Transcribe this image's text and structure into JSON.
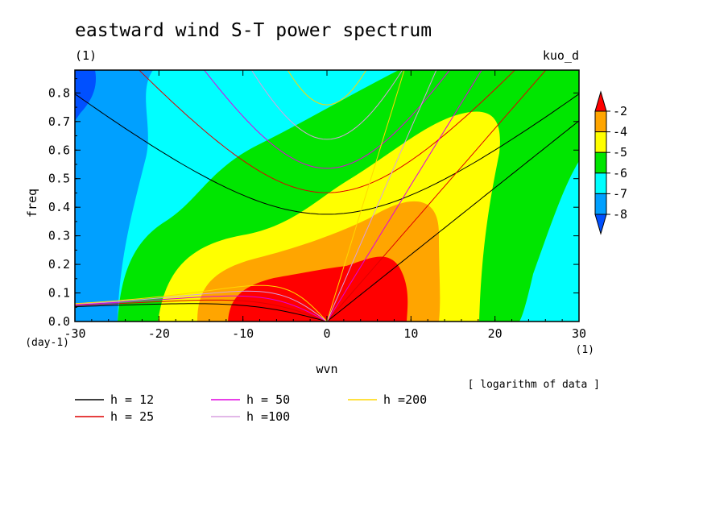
{
  "chart_data": {
    "type": "heatmap",
    "title": "eastward wind S-T power spectrum",
    "units_label": "(1)",
    "experiment": "kuo_d",
    "xlabel": "wvn",
    "ylabel": "freq",
    "x_units": "(1)",
    "y_units": "(day-1)",
    "xlim": [
      -30,
      30
    ],
    "ylim": [
      0,
      0.88
    ],
    "x_ticks": [
      "-30",
      "-20",
      "-10",
      "0",
      "10",
      "20",
      "30"
    ],
    "y_ticks": [
      "0.0",
      "0.1",
      "0.2",
      "0.3",
      "0.4",
      "0.5",
      "0.6",
      "0.7",
      "0.8"
    ],
    "data_note": "[ logarithm of data ]",
    "contour_levels": [
      -8,
      -7,
      -6,
      -5,
      -4,
      -2
    ],
    "colorbar_labels": [
      "-2",
      "-4",
      "-5",
      "-6",
      "-7",
      "-8"
    ],
    "colorbar_colors": [
      "#ff0000",
      "#ffa500",
      "#ffff00",
      "#00e600",
      "#00ffff",
      "#00a0ff",
      "#0050ff"
    ],
    "fill_colors": {
      "lt_-8": "#0050ff",
      "-8_-7": "#00a0ff",
      "-7_-6": "#00ffff",
      "-6_-5": "#00e600",
      "-5_-4": "#ffff00",
      "-4_-2": "#ffa500",
      "gt_-2": "#ff0000"
    },
    "dispersion_curves": [
      {
        "name": "h = 12",
        "h": 12,
        "color": "#000000"
      },
      {
        "name": "h = 25",
        "h": 25,
        "color": "#dd0000"
      },
      {
        "name": "h = 50",
        "h": 50,
        "color": "#e000e0"
      },
      {
        "name": "h =100",
        "h": 100,
        "color": "#d8a0e0"
      },
      {
        "name": "h =200",
        "h": 200,
        "color": "#ffd700"
      }
    ]
  }
}
